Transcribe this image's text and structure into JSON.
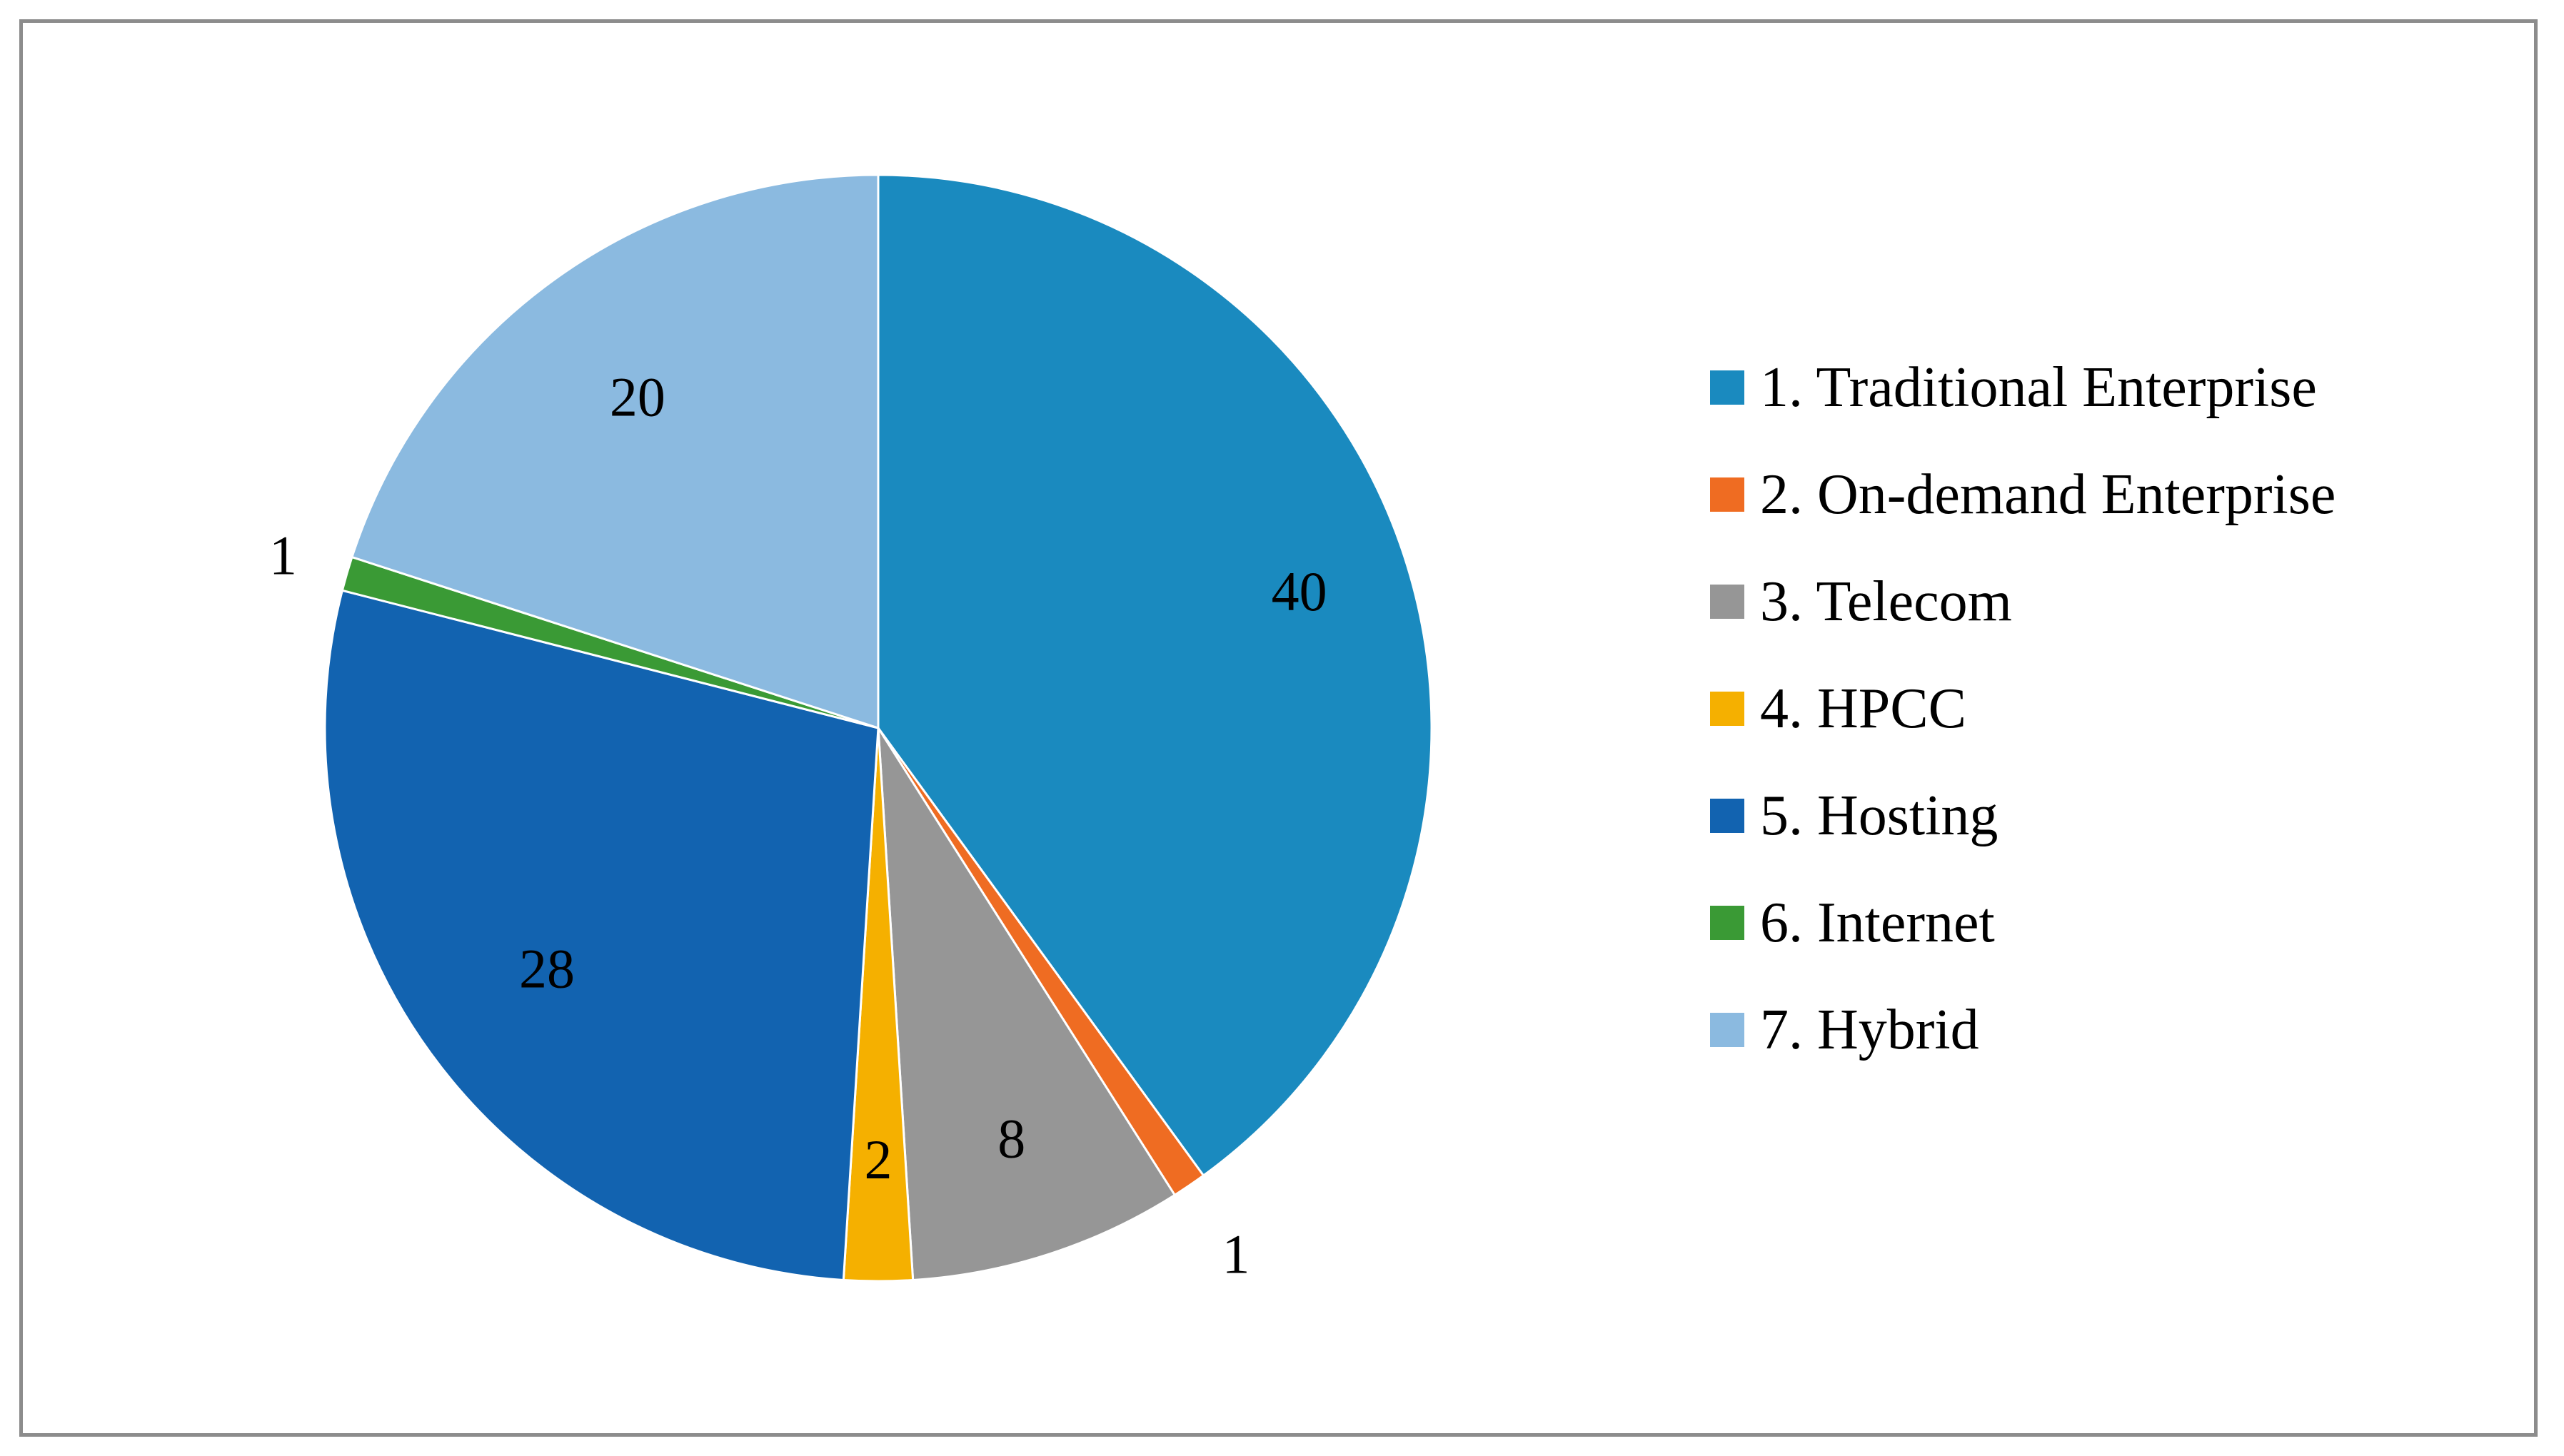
{
  "chart_data": {
    "type": "pie",
    "title": "",
    "legend_position": "right",
    "categories": [
      "1. Traditional Enterprise",
      "2. On-demand Enterprise",
      "3. Telecom",
      "4. HPCC",
      "5. Hosting",
      "6. Internet",
      "7. Hybrid"
    ],
    "values": [
      40,
      1,
      8,
      2,
      28,
      1,
      20
    ],
    "data_labels": [
      "40",
      "1",
      "8",
      "2",
      "28",
      "1",
      "20"
    ],
    "colors": [
      "#1a8abf",
      "#ef6c22",
      "#969696",
      "#f5b000",
      "#1263b0",
      "#3a9a35",
      "#8bbae0"
    ],
    "start_angle": "12 o'clock",
    "direction": "clockwise"
  }
}
